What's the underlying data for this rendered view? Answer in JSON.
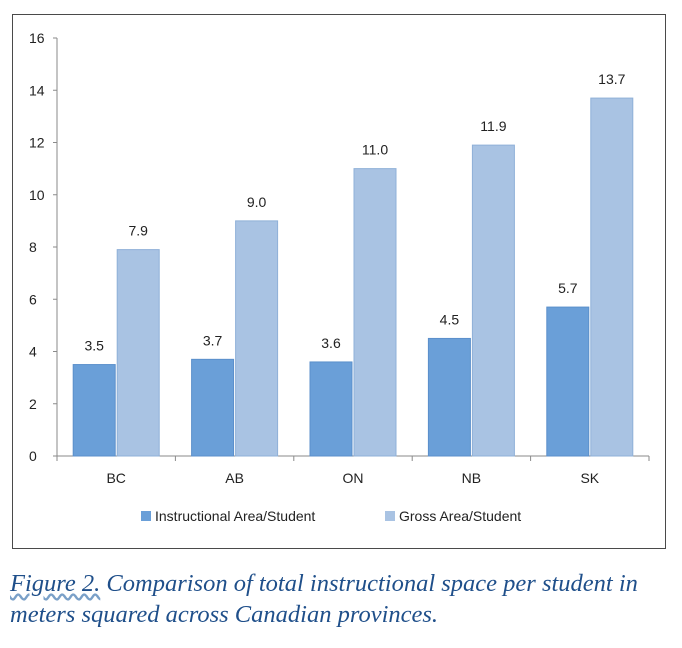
{
  "chart_data": {
    "type": "bar",
    "title": "",
    "xlabel": "",
    "ylabel": "",
    "categories": [
      "BC",
      "AB",
      "ON",
      "NB",
      "SK"
    ],
    "series": [
      {
        "name": "Instructional Area/Student",
        "values": [
          3.5,
          3.7,
          3.6,
          4.5,
          5.7
        ],
        "labels": [
          "3.5",
          "3.7",
          "3.6",
          "4.5",
          "5.7"
        ],
        "color": "#6a9fd8"
      },
      {
        "name": "Gross Area/Student",
        "values": [
          7.9,
          9.0,
          11.0,
          11.9,
          13.7
        ],
        "labels": [
          "7.9",
          "9.0",
          "11.0",
          "11.9",
          "13.7"
        ],
        "color": "#a9c3e3"
      }
    ],
    "ylim": [
      0,
      16
    ],
    "yticks": [
      0,
      2,
      4,
      6,
      8,
      10,
      12,
      14,
      16
    ],
    "grid": false,
    "legend_position": "bottom"
  },
  "caption": {
    "label": "Figure 2.",
    "text": " Comparison of total instructional space per student in meters squared across Canadian provinces."
  }
}
